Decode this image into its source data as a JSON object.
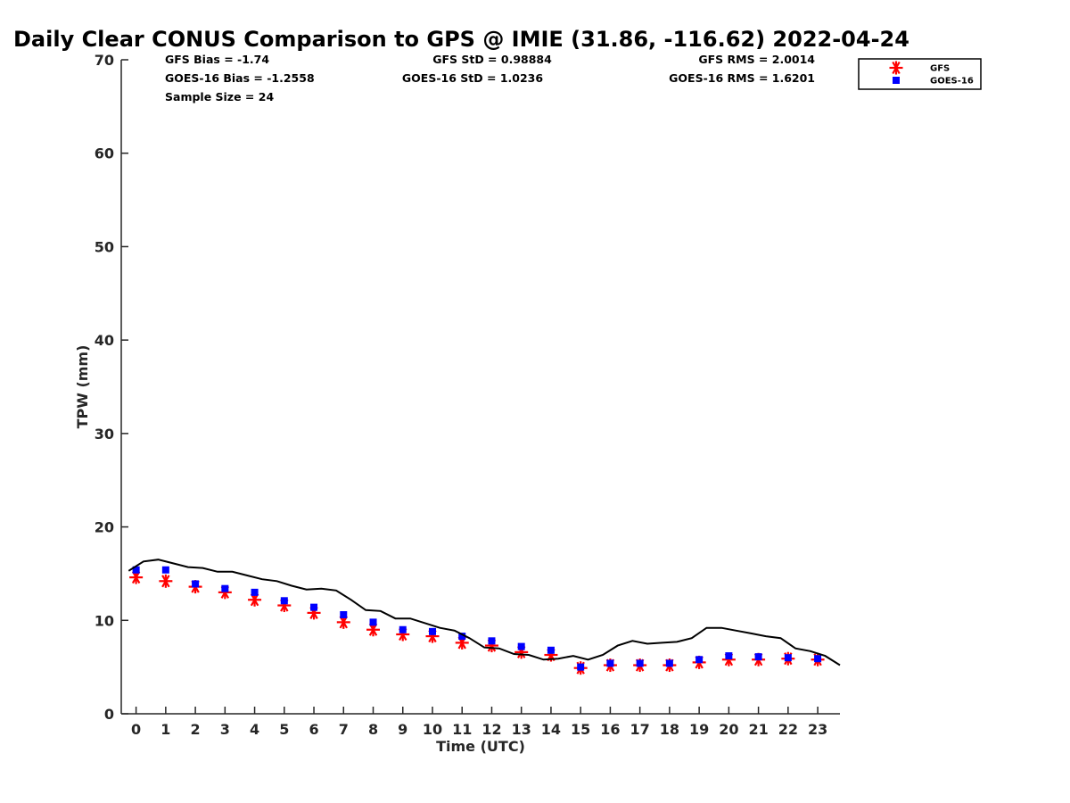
{
  "chart_data": {
    "type": "scatter",
    "title": "Daily Clear CONUS Comparison to GPS @ IMIE (31.86, -116.62) 2022-04-24",
    "xlabel": "Time (UTC)",
    "ylabel": "TPW (mm)",
    "xlim": [
      -0.5,
      23.75
    ],
    "ylim": [
      0,
      70
    ],
    "x_ticks": [
      0,
      1,
      2,
      3,
      4,
      5,
      6,
      7,
      8,
      9,
      10,
      11,
      12,
      13,
      14,
      15,
      16,
      17,
      18,
      19,
      20,
      21,
      22,
      23
    ],
    "y_ticks": [
      0,
      10,
      20,
      30,
      40,
      50,
      60,
      70
    ],
    "grid": false,
    "legend_position": "top-right",
    "series": [
      {
        "name": "GFS",
        "marker": "asterisk",
        "color": "#ff0000",
        "x": [
          0,
          1,
          2,
          3,
          4,
          5,
          6,
          7,
          8,
          9,
          10,
          11,
          12,
          13,
          14,
          15,
          16,
          17,
          18,
          19,
          20,
          21,
          22,
          23
        ],
        "values": [
          14.6,
          14.2,
          13.6,
          13.0,
          12.2,
          11.6,
          10.8,
          9.8,
          9.0,
          8.5,
          8.3,
          7.6,
          7.3,
          6.6,
          6.3,
          4.9,
          5.2,
          5.2,
          5.2,
          5.5,
          5.8,
          5.8,
          5.9,
          5.8
        ]
      },
      {
        "name": "GOES-16",
        "marker": "square",
        "color": "#0000ff",
        "x": [
          0,
          1,
          2,
          3,
          4,
          5,
          6,
          7,
          8,
          9,
          10,
          11,
          12,
          13,
          14,
          15,
          16,
          17,
          18,
          19,
          20,
          21,
          22,
          23
        ],
        "values": [
          15.4,
          15.4,
          13.9,
          13.4,
          13.0,
          12.1,
          11.4,
          10.6,
          9.8,
          9.0,
          8.8,
          8.3,
          7.8,
          7.2,
          6.8,
          5.0,
          5.4,
          5.4,
          5.4,
          5.8,
          6.2,
          6.1,
          6.0,
          5.9
        ]
      },
      {
        "marker": "line",
        "color": "#000000",
        "x": [
          -0.25,
          0.25,
          0.75,
          1.25,
          1.75,
          2.25,
          2.75,
          3.25,
          3.75,
          4.25,
          4.75,
          5.25,
          5.75,
          6.25,
          6.75,
          7.25,
          7.75,
          8.25,
          8.75,
          9.25,
          9.75,
          10.25,
          10.75,
          11.25,
          11.75,
          12.25,
          12.75,
          13.25,
          13.75,
          14.25,
          14.75,
          15.25,
          15.75,
          16.25,
          16.75,
          17.25,
          17.75,
          18.25,
          18.75,
          19.25,
          19.75,
          20.25,
          20.75,
          21.25,
          21.75,
          22.25,
          22.75,
          23.25,
          23.75
        ],
        "values": [
          15.3,
          16.3,
          16.5,
          16.1,
          15.7,
          15.6,
          15.2,
          15.2,
          14.8,
          14.4,
          14.2,
          13.7,
          13.3,
          13.4,
          13.2,
          12.2,
          11.1,
          11.0,
          10.2,
          10.2,
          9.7,
          9.2,
          8.9,
          8.1,
          7.1,
          7.0,
          6.4,
          6.3,
          5.8,
          5.9,
          6.2,
          5.8,
          6.3,
          7.3,
          7.8,
          7.5,
          7.6,
          7.7,
          8.1,
          9.2,
          9.2,
          8.9,
          8.6,
          8.3,
          8.1,
          7.0,
          6.7,
          6.2,
          5.2
        ]
      }
    ],
    "stats": [
      {
        "text": "GFS Bias = -1.74"
      },
      {
        "text": "GFS StD = 0.98884"
      },
      {
        "text": "GFS RMS = 2.0014"
      },
      {
        "text": "GOES-16 Bias = -1.2558"
      },
      {
        "text": "GOES-16 StD = 1.0236"
      },
      {
        "text": "GOES-16 RMS = 1.6201"
      },
      {
        "text": "Sample Size = 24"
      }
    ]
  }
}
